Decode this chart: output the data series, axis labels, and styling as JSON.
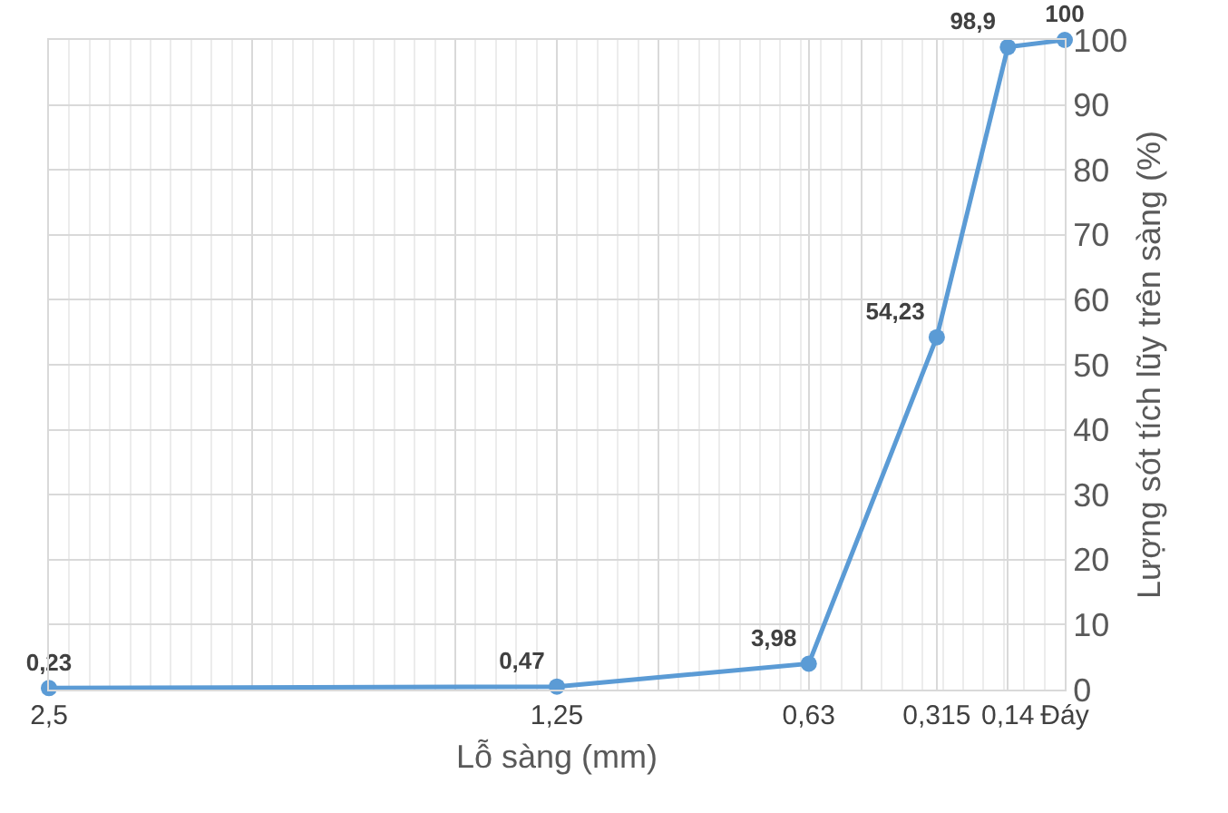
{
  "chart_data": {
    "type": "line",
    "xlabel": "Lỗ sàng (mm)",
    "ylabel": "Lượng sót tích lũy trên sàng (%)",
    "x": [
      2.5,
      1.25,
      0.63,
      0.315,
      0.14,
      0
    ],
    "series": [
      {
        "color": "#5b9bd5",
        "values": [
          0.23,
          0.47,
          3.98,
          54.23,
          98.9,
          100
        ],
        "value_labels": [
          "0,23",
          "0,47",
          "3,98",
          "54,23",
          "98,9",
          "100"
        ]
      }
    ],
    "xlim": [
      2.5,
      0
    ],
    "xticks": [
      {
        "value": 2.5,
        "label": "2,5"
      },
      {
        "value": 2.0,
        "label": null
      },
      {
        "value": 1.5,
        "label": null
      },
      {
        "value": 1.25,
        "label": "1,25"
      },
      {
        "value": 1.0,
        "label": null
      },
      {
        "value": 0.63,
        "label": "0,63"
      },
      {
        "value": 0.5,
        "label": null
      },
      {
        "value": 0.315,
        "label": "0,315"
      },
      {
        "value": 0.14,
        "label": "0,14"
      },
      {
        "value": 0,
        "label": "Đáy"
      }
    ],
    "ylim": [
      0,
      100
    ],
    "yticks": [
      0,
      10,
      20,
      30,
      40,
      50,
      60,
      70,
      80,
      90,
      100
    ],
    "grid": true,
    "marker": "circle",
    "line_style": "solid",
    "legend": false
  }
}
